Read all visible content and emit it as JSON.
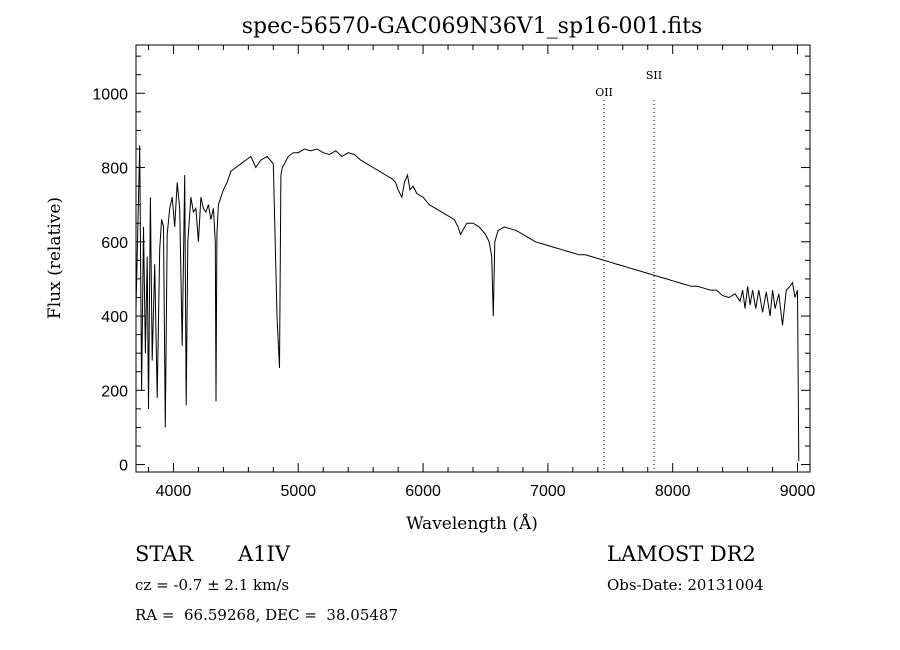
{
  "chart_data": {
    "type": "line",
    "title": "spec-56570-GAC069N36V1_sp16-001.fits",
    "xlabel": "Wavelength (Å)",
    "ylabel": "Flux (relative)",
    "xlim": [
      3700,
      9100
    ],
    "ylim": [
      -20,
      1130
    ],
    "x_ticks": [
      4000,
      5000,
      6000,
      7000,
      8000,
      9000
    ],
    "y_ticks": [
      0,
      200,
      400,
      600,
      800,
      1000
    ],
    "grid": false,
    "series": [
      {
        "x": [
          3700,
          3730,
          3745,
          3760,
          3775,
          3790,
          3800,
          3815,
          3830,
          3850,
          3870,
          3890,
          3905,
          3920,
          3935,
          3950,
          3970,
          3990,
          4010,
          4030,
          4050,
          4070,
          4090,
          4102,
          4115,
          4140,
          4160,
          4180,
          4200,
          4220,
          4240,
          4260,
          4280,
          4300,
          4320,
          4335,
          4341,
          4348,
          4360,
          4380,
          4400,
          4430,
          4460,
          4500,
          4540,
          4580,
          4620,
          4660,
          4700,
          4750,
          4800,
          4830,
          4850,
          4861,
          4872,
          4890,
          4920,
          4960,
          5000,
          5050,
          5100,
          5150,
          5200,
          5250,
          5300,
          5350,
          5400,
          5450,
          5500,
          5550,
          5600,
          5650,
          5700,
          5750,
          5780,
          5800,
          5830,
          5850,
          5875,
          5895,
          5920,
          5950,
          6000,
          6050,
          6100,
          6150,
          6200,
          6250,
          6280,
          6300,
          6350,
          6400,
          6450,
          6500,
          6530,
          6550,
          6563,
          6575,
          6600,
          6650,
          6700,
          6750,
          6800,
          6850,
          6900,
          6950,
          7000,
          7050,
          7100,
          7150,
          7200,
          7250,
          7300,
          7350,
          7400,
          7450,
          7500,
          7550,
          7600,
          7650,
          7700,
          7750,
          7800,
          7850,
          7900,
          7950,
          8000,
          8050,
          8100,
          8150,
          8200,
          8250,
          8300,
          8350,
          8400,
          8450,
          8500,
          8540,
          8560,
          8580,
          8600,
          8620,
          8640,
          8665,
          8690,
          8720,
          8750,
          8780,
          8800,
          8820,
          8850,
          8880,
          8910,
          8940,
          8960,
          8980,
          9000,
          9010
        ],
        "y": [
          420,
          860,
          200,
          640,
          300,
          560,
          150,
          720,
          280,
          540,
          180,
          580,
          660,
          640,
          100,
          620,
          690,
          720,
          640,
          760,
          690,
          320,
          780,
          160,
          600,
          720,
          680,
          690,
          600,
          720,
          690,
          680,
          700,
          660,
          690,
          600,
          170,
          620,
          700,
          720,
          740,
          760,
          790,
          800,
          810,
          820,
          830,
          800,
          820,
          830,
          810,
          400,
          260,
          780,
          800,
          810,
          830,
          840,
          840,
          850,
          845,
          850,
          840,
          835,
          845,
          830,
          840,
          835,
          820,
          810,
          800,
          790,
          780,
          770,
          760,
          740,
          720,
          760,
          780,
          740,
          750,
          730,
          720,
          700,
          690,
          680,
          670,
          660,
          640,
          620,
          650,
          650,
          640,
          620,
          600,
          560,
          400,
          600,
          630,
          640,
          635,
          630,
          620,
          610,
          600,
          595,
          590,
          585,
          580,
          575,
          570,
          565,
          565,
          560,
          555,
          550,
          545,
          540,
          535,
          530,
          525,
          520,
          515,
          510,
          505,
          500,
          495,
          490,
          485,
          480,
          480,
          475,
          470,
          470,
          455,
          450,
          460,
          440,
          470,
          420,
          480,
          430,
          470,
          420,
          470,
          410,
          465,
          400,
          470,
          420,
          460,
          375,
          470,
          480,
          490,
          450,
          470,
          10
        ]
      }
    ],
    "annotations": [
      {
        "label": "OII",
        "x": 7450
      },
      {
        "label": "SII",
        "x": 7850
      }
    ]
  },
  "info": {
    "object_class": "STAR",
    "subclass": "A1IV",
    "survey": "LAMOST DR2",
    "redshift_text": "cz = -0.7 ± 2.1 km/s",
    "obs_date": "Obs-Date: 20131004",
    "coords": "RA =  66.59268, DEC =  38.05487"
  }
}
